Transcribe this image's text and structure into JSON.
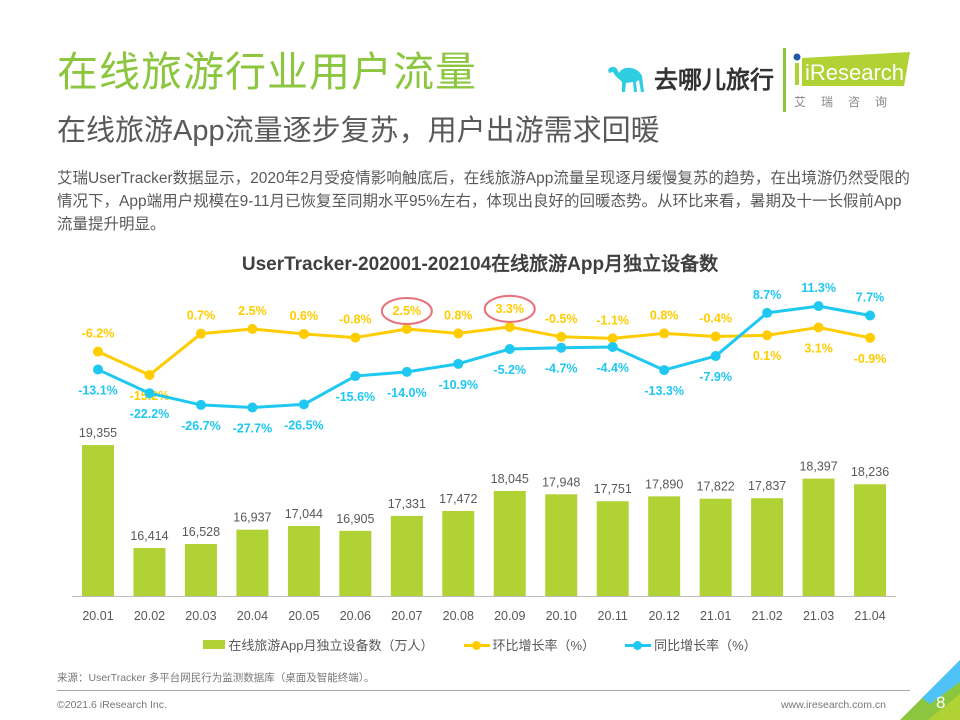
{
  "header": {
    "title": "在线旅游行业用户流量",
    "subtitle": "在线旅游App流量逐步复苏，用户出游需求回暖",
    "logos": {
      "qunar_text": "去哪儿旅行",
      "qunar_icon": "camel-icon",
      "iresearch_text": "iResearch",
      "iresearch_cn": "艾瑞咨询"
    }
  },
  "description": "艾瑞UserTracker数据显示，2020年2月受疫情影响触底后，在线旅游App流量呈现逐月缓慢复苏的趋势，在出境游仍然受限的情况下，App端用户规模在9-11月已恢复至同期水平95%左右，体现出良好的回暖态势。从环比来看，暑期及十一长假前App流量提升明显。",
  "colors": {
    "title_green": "#8cc63f",
    "bar": "#b1d234",
    "mom_line": "#ffcc00",
    "yoy_line": "#1ec8f0",
    "highlight_circle": "#e8707a"
  },
  "chart_data": {
    "type": "bar",
    "title": "UserTracker-202001-202104在线旅游App月独立设备数",
    "categories": [
      "20.01",
      "20.02",
      "20.03",
      "20.04",
      "20.05",
      "20.06",
      "20.07",
      "20.08",
      "20.09",
      "20.10",
      "20.11",
      "20.12",
      "21.01",
      "21.02",
      "21.03",
      "21.04"
    ],
    "series": [
      {
        "name": "在线旅游App月独立设备数（万人）",
        "type": "bar",
        "values": [
          19355,
          16414,
          16528,
          16937,
          17044,
          16905,
          17331,
          17472,
          18045,
          17948,
          17751,
          17890,
          17822,
          17837,
          18397,
          18236
        ],
        "labels": [
          "19,355",
          "16,414",
          "16,528",
          "16,937",
          "17,044",
          "16,905",
          "17,331",
          "17,472",
          "18,045",
          "17,948",
          "17,751",
          "17,890",
          "17,822",
          "17,837",
          "18,397",
          "18,236"
        ]
      },
      {
        "name": "环比增长率（%）",
        "type": "line",
        "values": [
          -6.2,
          -15.2,
          0.7,
          2.5,
          0.6,
          -0.8,
          2.5,
          0.8,
          3.3,
          -0.5,
          -1.1,
          0.8,
          -0.4,
          0.1,
          3.1,
          -0.9
        ],
        "labels": [
          "-6.2%",
          "-15.2%",
          "0.7%",
          "2.5%",
          "0.6%",
          "-0.8%",
          "2.5%",
          "0.8%",
          "3.3%",
          "-0.5%",
          "-1.1%",
          "0.8%",
          "-0.4%",
          "0.1%",
          "3.1%",
          "-0.9%"
        ],
        "label_side": [
          "above",
          "below",
          "above",
          "above",
          "above",
          "above",
          "above",
          "above",
          "above",
          "above",
          "above",
          "above",
          "above",
          "below",
          "below",
          "below"
        ]
      },
      {
        "name": "同比增长率（%）",
        "type": "line",
        "values": [
          -13.1,
          -22.2,
          -26.7,
          -27.7,
          -26.5,
          -15.6,
          -14.0,
          -10.9,
          -5.2,
          -4.7,
          -4.4,
          -13.3,
          -7.9,
          8.7,
          11.3,
          7.7
        ],
        "labels": [
          "-13.1%",
          "-22.2%",
          "-26.7%",
          "-27.7%",
          "-26.5%",
          "-15.6%",
          "-14.0%",
          "-10.9%",
          "-5.2%",
          "-4.7%",
          "-4.4%",
          "-13.3%",
          "-7.9%",
          "8.7%",
          "11.3%",
          "7.7%"
        ],
        "label_side": [
          "below",
          "below",
          "below",
          "below",
          "below",
          "below",
          "below",
          "below",
          "below",
          "below",
          "below",
          "below",
          "below",
          "above",
          "above",
          "above"
        ]
      }
    ],
    "highlighted_labels": [
      {
        "series": "环比增长率（%）",
        "category": "20.07"
      },
      {
        "series": "环比增长率（%）",
        "category": "20.09"
      }
    ],
    "bar_ylim": [
      15043,
      19355
    ],
    "line_ylim": [
      -27.7,
      11.3
    ],
    "grid": false,
    "legend_position": "bottom",
    "xlabel": "",
    "ylabel": ""
  },
  "legend": {
    "bar_label": "在线旅游App月独立设备数（万人）",
    "mom_label": "环比增长率（%）",
    "yoy_label": "同比增长率（%）"
  },
  "footer": {
    "source": "来源：UserTracker 多平台网民行为监测数据库（桌面及智能终端）。",
    "copyright": "©2021.6 iResearch Inc.",
    "website": "www.iresearch.com.cn",
    "page_number": "8"
  }
}
